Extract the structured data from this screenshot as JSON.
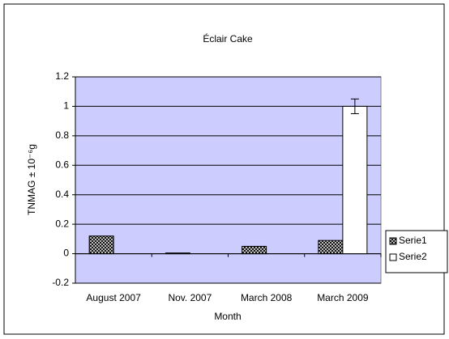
{
  "chart_data": {
    "type": "bar",
    "title": "Éclair Cake",
    "x_label": "Month",
    "y_label": "TNMAG ± 10⁻⁶g",
    "categories": [
      "August 2007",
      "Nov. 2007",
      "March 2008",
      "March 2009"
    ],
    "series": [
      {
        "name": "Serie1",
        "color": "#333333",
        "pattern": "hatch",
        "values": [
          0.12,
          0.005,
          0.05,
          0.09
        ]
      },
      {
        "name": "Serie2",
        "color": "#ffffff",
        "values": [
          0,
          0,
          0,
          1.0
        ],
        "errors": [
          null,
          null,
          null,
          0.05
        ]
      }
    ],
    "ylim": [
      -0.2,
      1.2
    ],
    "yticks": [
      -0.2,
      0,
      0.2,
      0.4,
      0.6,
      0.8,
      1,
      1.2
    ],
    "grid": true,
    "plot_background": "#ccccff",
    "legend": "right"
  }
}
